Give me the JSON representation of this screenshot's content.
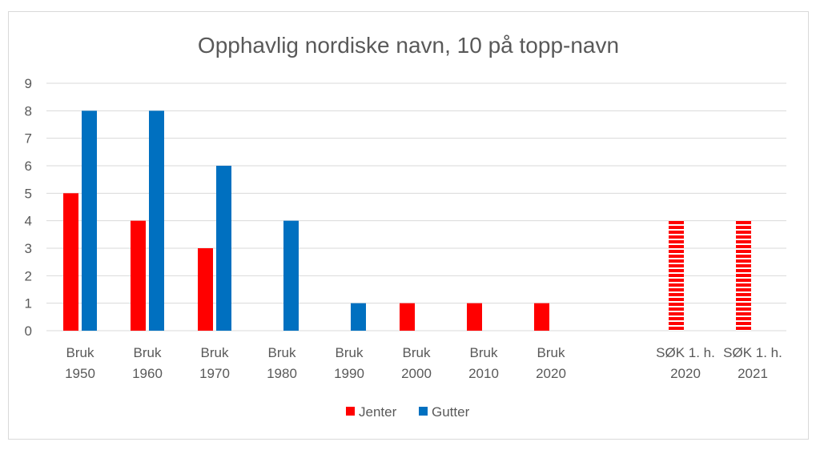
{
  "chart_data": {
    "type": "bar",
    "title": "Opphavlig nordiske navn, 10 på topp-navn",
    "categories": [
      [
        "Bruk",
        "1950"
      ],
      [
        "Bruk",
        "1960"
      ],
      [
        "Bruk",
        "1970"
      ],
      [
        "Bruk",
        "1980"
      ],
      [
        "Bruk",
        "1990"
      ],
      [
        "Bruk",
        "2000"
      ],
      [
        "Bruk",
        "2010"
      ],
      [
        "Bruk",
        "2020"
      ],
      [
        "",
        ""
      ],
      [
        "SØK 1. h.",
        "2020"
      ],
      [
        "SØK 1. h.",
        "2021"
      ]
    ],
    "series": [
      {
        "name": "Jenter",
        "color": "#ff0000",
        "values": [
          5,
          4,
          3,
          0,
          0,
          1,
          1,
          1,
          null,
          4,
          4
        ],
        "pattern": [
          "solid",
          "solid",
          "solid",
          "solid",
          "solid",
          "solid",
          "solid",
          "solid",
          "solid",
          "striped",
          "striped"
        ]
      },
      {
        "name": "Gutter",
        "color": "#0070c0",
        "values": [
          8,
          8,
          6,
          4,
          1,
          0,
          0,
          0,
          null,
          0,
          0
        ],
        "pattern": [
          "solid",
          "solid",
          "solid",
          "solid",
          "solid",
          "solid",
          "solid",
          "solid",
          "solid",
          "solid",
          "solid"
        ]
      }
    ],
    "ylim": [
      0,
      9
    ],
    "yticks": [
      0,
      1,
      2,
      3,
      4,
      5,
      6,
      7,
      8,
      9
    ],
    "grid": true,
    "legend": "bottom"
  }
}
